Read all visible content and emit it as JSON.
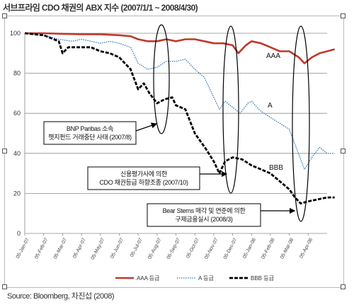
{
  "page_title": "서브프라임 CDO 채권의 ABX 지수 (2007/1/1 ~ 2008/4/30)",
  "source": "Source: Bloomberg, 차진섭 (2008)",
  "chart_data": {
    "type": "line",
    "title": "서브프라임 CDO 채권의 ABX 지수 (2007/1/1 ~ 2008/4/30)",
    "ylim": [
      0,
      100
    ],
    "yticks": [
      "0",
      "20",
      "40",
      "60",
      "80",
      "100"
    ],
    "grid": true,
    "legend_placement": "bottom",
    "x_tick_labels": [
      "05-Jan-07",
      "05-Feb-07",
      "05-Mar-07",
      "05-Apr-07",
      "05-May-07",
      "05-Jun-07",
      "05-Jul-07",
      "05-Aug-07",
      "05-Sep-07",
      "05-Oct-07",
      "05-Nov-07",
      "05-Dec-07",
      "05-Jan-08",
      "05-Feb-08",
      "05-Mar-08",
      "05-Apr-08"
    ],
    "x_range": [
      0,
      16
    ],
    "series": [
      {
        "name": "AAA 등급",
        "color": "#c0392b",
        "style": "solid",
        "end_label": "AAA",
        "points": [
          [
            0,
            100
          ],
          [
            1,
            100
          ],
          [
            2,
            99.7
          ],
          [
            3,
            99.5
          ],
          [
            4,
            99.5
          ],
          [
            5,
            99
          ],
          [
            5.6,
            98.5
          ],
          [
            6,
            97
          ],
          [
            6.5,
            96
          ],
          [
            7,
            96
          ],
          [
            7.5,
            97
          ],
          [
            8,
            96
          ],
          [
            8.5,
            97
          ],
          [
            9,
            97
          ],
          [
            9.5,
            96
          ],
          [
            10,
            95
          ],
          [
            10.5,
            95
          ],
          [
            11,
            94
          ],
          [
            11.3,
            90
          ],
          [
            11.7,
            94
          ],
          [
            12,
            96
          ],
          [
            12.5,
            95
          ],
          [
            13,
            93
          ],
          [
            13.5,
            91
          ],
          [
            14,
            91
          ],
          [
            14.5,
            88
          ],
          [
            14.8,
            85
          ],
          [
            15.2,
            88
          ],
          [
            15.6,
            90
          ],
          [
            16,
            91
          ],
          [
            16.4,
            92
          ]
        ]
      },
      {
        "name": "A 등급",
        "color": "#2e75b6",
        "style": "dotted",
        "end_label": "A",
        "points": [
          [
            0,
            100
          ],
          [
            1,
            99
          ],
          [
            1.8,
            97
          ],
          [
            2.5,
            96
          ],
          [
            3,
            97
          ],
          [
            3.5,
            96
          ],
          [
            4,
            95
          ],
          [
            4.5,
            96
          ],
          [
            5,
            95
          ],
          [
            5.6,
            93
          ],
          [
            6,
            85
          ],
          [
            6.5,
            82
          ],
          [
            7,
            83
          ],
          [
            7.5,
            86
          ],
          [
            8,
            86
          ],
          [
            8.5,
            87
          ],
          [
            9,
            82
          ],
          [
            9.5,
            78
          ],
          [
            10,
            68
          ],
          [
            10.3,
            62
          ],
          [
            10.6,
            66
          ],
          [
            11,
            63
          ],
          [
            11.4,
            60
          ],
          [
            11.8,
            65
          ],
          [
            12,
            66
          ],
          [
            12.5,
            61
          ],
          [
            13,
            58
          ],
          [
            13.5,
            55
          ],
          [
            14,
            52
          ],
          [
            14.4,
            42
          ],
          [
            14.8,
            32
          ],
          [
            15.2,
            38
          ],
          [
            15.6,
            43
          ],
          [
            16,
            40
          ],
          [
            16.4,
            40
          ]
        ]
      },
      {
        "name": "BBB 등급",
        "color": "#000000",
        "style": "dashed",
        "end_label": "BBB",
        "points": [
          [
            0,
            100
          ],
          [
            1,
            99
          ],
          [
            1.8,
            96
          ],
          [
            2,
            90
          ],
          [
            2.3,
            93
          ],
          [
            3,
            93
          ],
          [
            3.5,
            93
          ],
          [
            4,
            91
          ],
          [
            4.5,
            90
          ],
          [
            5,
            88
          ],
          [
            5.6,
            82
          ],
          [
            6,
            72
          ],
          [
            6.3,
            75
          ],
          [
            6.6,
            70
          ],
          [
            7,
            65
          ],
          [
            7.4,
            67
          ],
          [
            7.8,
            68
          ],
          [
            8,
            64
          ],
          [
            8.5,
            62
          ],
          [
            9,
            50
          ],
          [
            9.3,
            46
          ],
          [
            9.6,
            42
          ],
          [
            10,
            36
          ],
          [
            10.3,
            30
          ],
          [
            10.6,
            36
          ],
          [
            11,
            38
          ],
          [
            11.5,
            37
          ],
          [
            12,
            34
          ],
          [
            12.5,
            32
          ],
          [
            13,
            30
          ],
          [
            13.5,
            26
          ],
          [
            14,
            22
          ],
          [
            14.3,
            18
          ],
          [
            14.6,
            15
          ],
          [
            15,
            16
          ],
          [
            15.5,
            17
          ],
          [
            16,
            18
          ],
          [
            16.4,
            18
          ]
        ]
      }
    ],
    "annotations": [
      {
        "lines": [
          "BNP Paribas 소속",
          "헷지펀드 거래중단 사태 (2007/8)"
        ]
      },
      {
        "lines": [
          "신용평가사에 의한",
          "CDO 채권등급 하향조종 (2007/10)"
        ]
      },
      {
        "lines": [
          "Bear Sterns 매각 및 연준에 의한",
          "구제금융실시 (2008/3)"
        ]
      }
    ]
  }
}
